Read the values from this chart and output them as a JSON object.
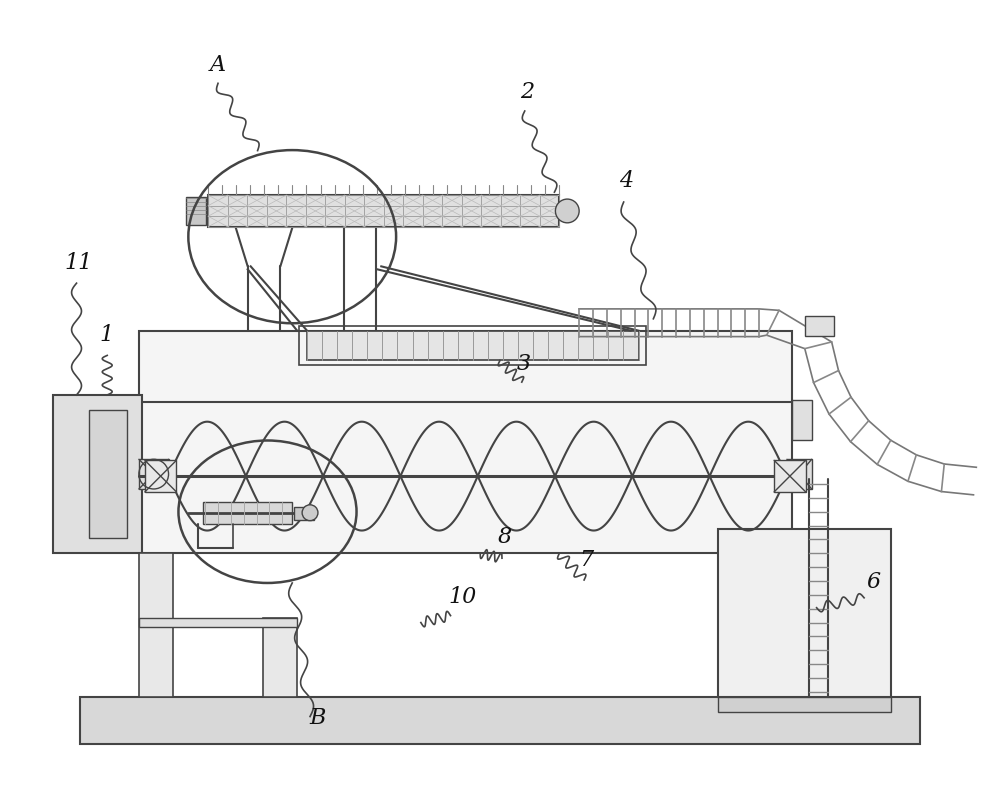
{
  "bg_color": "#ffffff",
  "lc": "#444444",
  "lc2": "#666666",
  "figsize": [
    10.0,
    7.86
  ],
  "dpi": 100,
  "lw_main": 1.5,
  "lw_thick": 2.0,
  "lw_thin": 1.0,
  "gray_fill": "#e8e8e8",
  "gray_light": "#f2f2f2",
  "gray_med": "#cccccc",
  "gray_dark": "#aaaaaa"
}
